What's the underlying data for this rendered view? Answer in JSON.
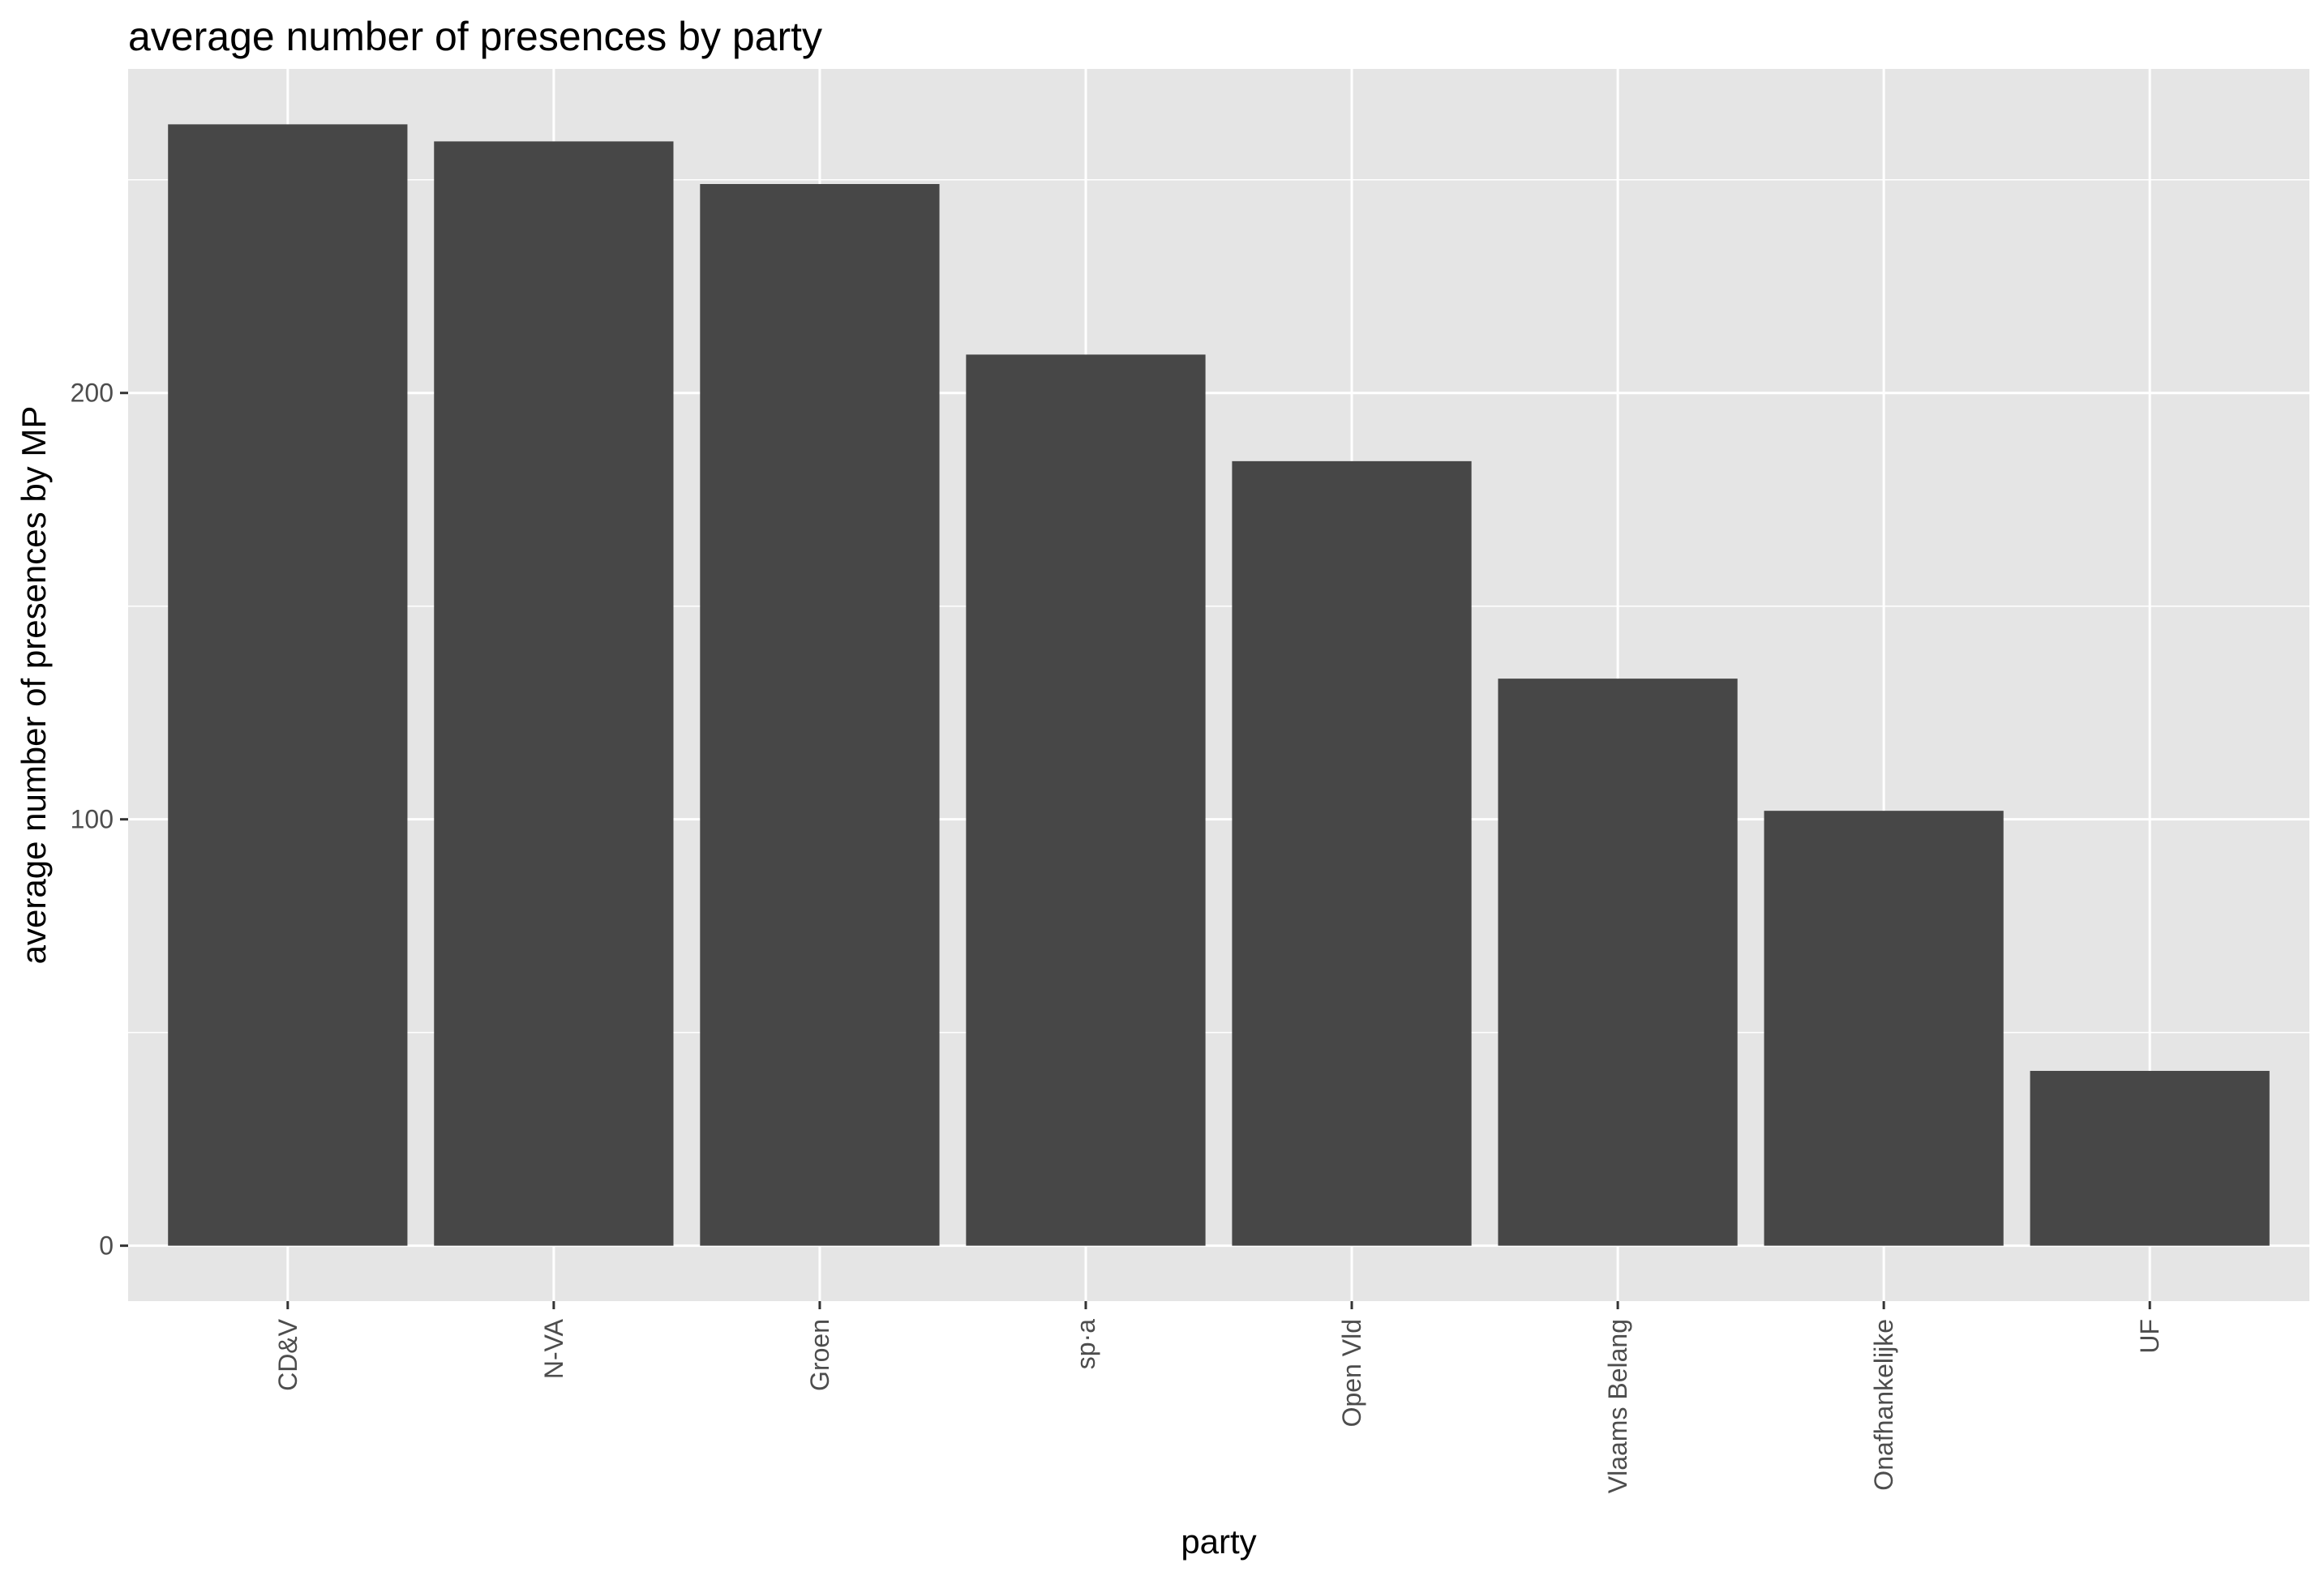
{
  "chart_data": {
    "type": "bar",
    "title": "average number of presences by party",
    "xlabel": "party",
    "ylabel": "average number of presences by MP",
    "categories": [
      "CD&V",
      "N-VA",
      "Groen",
      "sp·a",
      "Open Vld",
      "Vlaams Belang",
      "Onafhankelijke",
      "UF"
    ],
    "values": [
      263,
      259,
      249,
      209,
      184,
      133,
      102,
      41
    ],
    "ylim": [
      -13,
      276
    ],
    "yticks": [
      0,
      100,
      200
    ],
    "grid": true,
    "legend": "none",
    "colors": {
      "bar": "#474747",
      "panel": "#e5e5e5",
      "grid": "#ffffff",
      "tick": "#333333",
      "tick_label": "#4d4d4d"
    }
  }
}
